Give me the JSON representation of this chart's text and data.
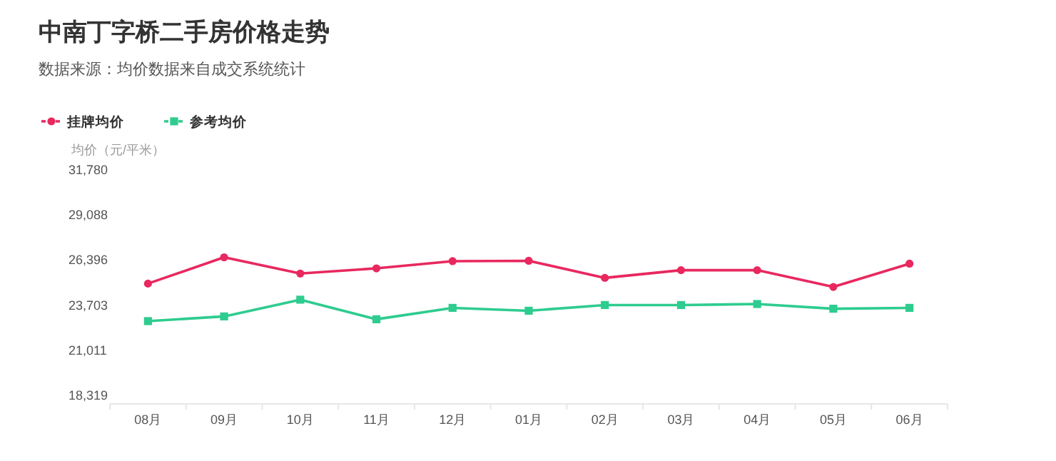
{
  "chart_data": {
    "type": "line",
    "title": "中南丁字桥二手房价格走势",
    "subtitle": "数据来源：均价数据来自成交系统统计",
    "ylabel": "均价（元/平米）",
    "categories": [
      "08月",
      "09月",
      "10月",
      "11月",
      "12月",
      "01月",
      "02月",
      "03月",
      "04月",
      "05月",
      "06月"
    ],
    "series": [
      {
        "name": "挂牌均价",
        "color": "#e8285f",
        "marker": "circle",
        "values": [
          24990,
          26560,
          25590,
          25900,
          26330,
          26350,
          25330,
          25790,
          25790,
          24790,
          26180
        ]
      },
      {
        "name": "参考均价",
        "color": "#2ecc8f",
        "marker": "square",
        "values": [
          22750,
          23030,
          24030,
          22860,
          23540,
          23370,
          23710,
          23710,
          23770,
          23490,
          23540
        ]
      }
    ],
    "ylim": [
      18319,
      31780
    ],
    "yticks": [
      {
        "value": 18319,
        "label": "18,319"
      },
      {
        "value": 21011,
        "label": "21,011"
      },
      {
        "value": 23703,
        "label": "23,703"
      },
      {
        "value": 26396,
        "label": "26,396"
      },
      {
        "value": 29088,
        "label": "29,088"
      },
      {
        "value": 31780,
        "label": "31,780"
      }
    ],
    "grid": false,
    "legend": "top left"
  }
}
